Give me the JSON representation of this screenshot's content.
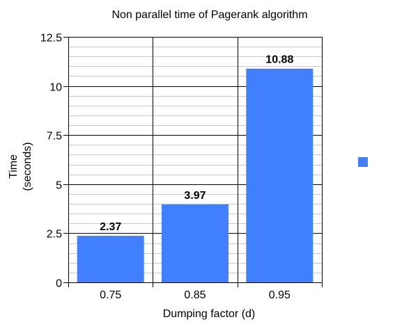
{
  "chart_data": {
    "type": "bar",
    "title": "Non parallel time of Pagerank algorithm",
    "xlabel": "Dumping factor (d)",
    "ylabel_lines": [
      "Time",
      "(seconds)"
    ],
    "categories": [
      "0.75",
      "0.85",
      "0.95"
    ],
    "series": [
      {
        "values": [
          2.37,
          3.97,
          10.88
        ],
        "color": "#4080ff"
      }
    ],
    "data_labels": [
      "2.37",
      "3.97",
      "10.88"
    ],
    "ylim": [
      0,
      12.5
    ],
    "y_major_ticks": [
      0,
      2.5,
      5,
      7.5,
      10,
      12.5
    ],
    "y_tick_labels": [
      "0",
      "2.5",
      "5",
      "7.5",
      "10",
      "12.5"
    ],
    "y_minor_step": 0.5,
    "grid": true,
    "legend_position": "right",
    "colors": {
      "bar": "#4080ff",
      "major_grid": "#000000",
      "minor_grid": "#c8c8c8",
      "text": "#000000"
    }
  }
}
